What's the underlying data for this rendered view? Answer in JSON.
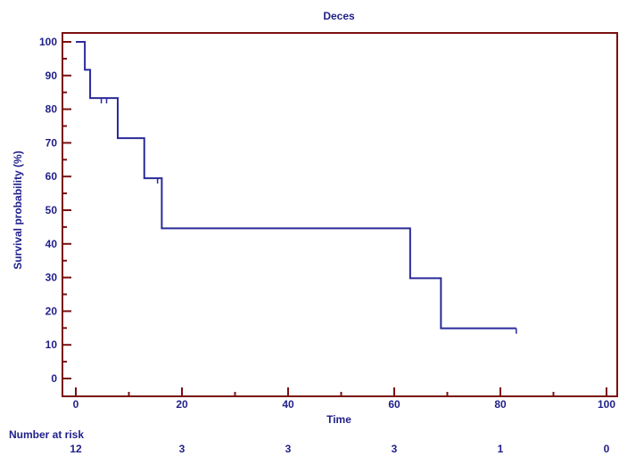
{
  "chart_data": {
    "type": "line",
    "subtype": "kaplan-meier step",
    "title": "Deces",
    "xlabel": "Time",
    "ylabel": "Survival probability (%)",
    "xlim": [
      0,
      100
    ],
    "ylim": [
      0,
      100
    ],
    "x_ticks": [
      0,
      20,
      40,
      60,
      80,
      100
    ],
    "y_ticks": [
      0,
      10,
      20,
      30,
      40,
      50,
      60,
      70,
      80,
      90,
      100
    ],
    "grid": false,
    "series": [
      {
        "steps": [
          {
            "x": 0,
            "y": 100
          },
          {
            "x": 1.7,
            "y": 91.7
          },
          {
            "x": 2.7,
            "y": 83.3
          },
          {
            "x": 7.9,
            "y": 71.4
          },
          {
            "x": 12.9,
            "y": 59.5
          },
          {
            "x": 16.2,
            "y": 44.6
          },
          {
            "x": 63.0,
            "y": 29.8
          },
          {
            "x": 68.8,
            "y": 14.9
          }
        ],
        "end_x": 83.0,
        "censored": [
          {
            "x": 4.8,
            "y": 83.3
          },
          {
            "x": 5.8,
            "y": 83.3
          },
          {
            "x": 15.4,
            "y": 59.5
          },
          {
            "x": 83.0,
            "y": 14.9
          }
        ]
      }
    ],
    "risk_table": {
      "label": "Number at risk",
      "times": [
        0,
        20,
        40,
        60,
        80,
        100
      ],
      "counts": [
        "12",
        "3",
        "3",
        "3",
        "1",
        "0"
      ]
    }
  },
  "colors": {
    "axis": "#7a1010",
    "curve": "#2b2b9a",
    "text": "#1f1f8a"
  }
}
